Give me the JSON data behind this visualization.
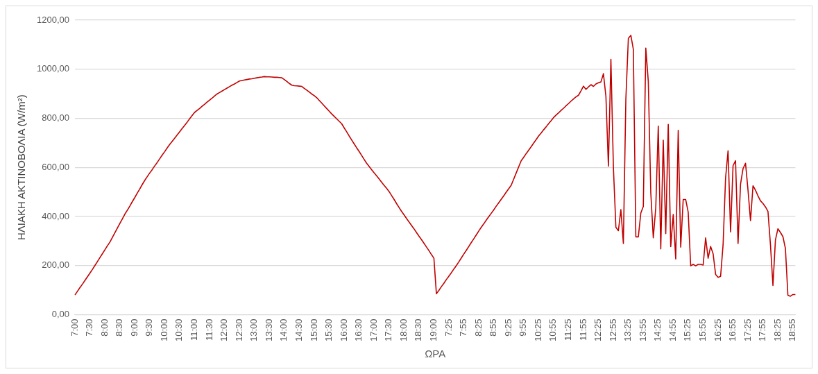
{
  "chart_data": {
    "type": "line",
    "xlabel": "ΩΡΑ",
    "ylabel": "ΗΛΙΑΚΗ ΑΚΤΙΝΟΒΟΛΙΑ (W/m²)",
    "color": "#c00000",
    "grid": "y",
    "ylim": [
      0,
      1200
    ],
    "yticks": [
      {
        "value": 0,
        "label": "0,00"
      },
      {
        "value": 200,
        "label": "200,00"
      },
      {
        "value": 400,
        "label": "400,00"
      },
      {
        "value": 600,
        "label": "600,00"
      },
      {
        "value": 800,
        "label": "800,00"
      },
      {
        "value": 1000,
        "label": "1000,00"
      },
      {
        "value": 1200,
        "label": "1200,00"
      }
    ],
    "categories": [
      "7:00",
      null,
      null,
      null,
      null,
      null,
      "7:30",
      null,
      null,
      null,
      null,
      null,
      "8:00",
      null,
      null,
      null,
      null,
      null,
      "8:30",
      null,
      null,
      null,
      null,
      null,
      "9:00",
      null,
      null,
      null,
      null,
      null,
      "9:30",
      null,
      null,
      null,
      null,
      null,
      "10:00",
      null,
      null,
      null,
      null,
      null,
      "10:30",
      null,
      null,
      null,
      null,
      null,
      "11:00",
      null,
      null,
      null,
      null,
      null,
      "11:30",
      null,
      null,
      null,
      null,
      null,
      "12:00",
      null,
      null,
      null,
      null,
      null,
      "12:30",
      null,
      null,
      null,
      null,
      null,
      "13:00",
      null,
      null,
      null,
      null,
      null,
      "13:30",
      null,
      null,
      null,
      null,
      null,
      "14:00",
      null,
      null,
      null,
      null,
      null,
      "14:30",
      null,
      null,
      null,
      null,
      null,
      "15:00",
      null,
      null,
      null,
      null,
      null,
      "15:30",
      null,
      null,
      null,
      null,
      null,
      "16:00",
      null,
      null,
      null,
      null,
      null,
      "16:30",
      null,
      null,
      null,
      null,
      null,
      "17:00",
      null,
      null,
      null,
      null,
      null,
      "17:30",
      null,
      null,
      null,
      null,
      null,
      "18:00",
      null,
      null,
      null,
      null,
      null,
      "18:30",
      null,
      null,
      null,
      null,
      null,
      "19:00",
      null,
      null,
      null,
      null,
      null,
      "7:25",
      null,
      null,
      null,
      null,
      null,
      "7:55",
      null,
      null,
      null,
      null,
      null,
      "8:25",
      null,
      null,
      null,
      null,
      null,
      "8:55",
      null,
      null,
      null,
      null,
      null,
      "9:25",
      null,
      null,
      null,
      null,
      null,
      "9:55",
      null,
      null,
      null,
      null,
      null,
      "10:25",
      null,
      null,
      null,
      null,
      null,
      "10:55",
      null,
      null,
      null,
      null,
      null,
      "11:25",
      null,
      null,
      null,
      null,
      null,
      "11:55",
      null,
      null,
      null,
      null,
      null,
      "12:25",
      null,
      null,
      null,
      null,
      null,
      "12:55",
      null,
      null,
      null,
      null,
      null,
      "13:25",
      null,
      null,
      null,
      null,
      null,
      "13:55",
      null,
      null,
      null,
      null,
      null,
      "14:25",
      null,
      null,
      null,
      null,
      null,
      "14:55",
      null,
      null,
      null,
      null,
      null,
      "15:25",
      null,
      null,
      null,
      null,
      null,
      "15:55",
      null,
      null,
      null,
      null,
      null,
      "16:25",
      null,
      null,
      null,
      null,
      null,
      "16:55",
      null,
      null,
      null,
      null,
      null,
      "17:25",
      null,
      null,
      null,
      null,
      null,
      "17:55",
      null,
      null,
      null,
      null,
      null,
      "18:25",
      null,
      null,
      null,
      null,
      null,
      "18:55",
      null
    ],
    "values": [
      80,
      95,
      110,
      124,
      139,
      154,
      169,
      184,
      200,
      216,
      232,
      248,
      264,
      280,
      295,
      314,
      333,
      352,
      371,
      390,
      409,
      425,
      442,
      460,
      477,
      495,
      512,
      530,
      547,
      562,
      577,
      591,
      606,
      620,
      635,
      650,
      664,
      679,
      693,
      706,
      719,
      732,
      745,
      758,
      771,
      784,
      798,
      811,
      824,
      832,
      840,
      849,
      857,
      866,
      874,
      882,
      891,
      899,
      905,
      911,
      917,
      923,
      929,
      935,
      940,
      946,
      952,
      954,
      956,
      958,
      960,
      961,
      963,
      965,
      967,
      968,
      970,
      969,
      969,
      968,
      967,
      967,
      966,
      965,
      958,
      950,
      942,
      935,
      933,
      932,
      931,
      930,
      922,
      915,
      907,
      899,
      892,
      884,
      873,
      862,
      851,
      840,
      829,
      818,
      808,
      798,
      788,
      778,
      761,
      745,
      728,
      712,
      696,
      680,
      665,
      649,
      633,
      617,
      604,
      591,
      578,
      566,
      553,
      540,
      527,
      515,
      502,
      486,
      470,
      453,
      437,
      421,
      407,
      392,
      378,
      364,
      350,
      335,
      320,
      306,
      291,
      276,
      261,
      245,
      230,
      85,
      99,
      114,
      128,
      143,
      157,
      171,
      186,
      200,
      215,
      231,
      247,
      262,
      278,
      294,
      309,
      325,
      341,
      356,
      370,
      385,
      399,
      413,
      427,
      442,
      456,
      470,
      484,
      499,
      513,
      527,
      552,
      577,
      602,
      627,
      641,
      656,
      670,
      684,
      699,
      713,
      728,
      740,
      753,
      765,
      778,
      790,
      803,
      813,
      822,
      832,
      841,
      851,
      860,
      870,
      879,
      887,
      894,
      912,
      931,
      918,
      928,
      937,
      930,
      940,
      945,
      948,
      982,
      889,
      605,
      1040,
      600,
      356,
      342,
      428,
      290,
      879,
      1126,
      1138,
      1081,
      317,
      317,
      414,
      441,
      1086,
      950,
      496,
      313,
      436,
      768,
      268,
      711,
      330,
      775,
      277,
      408,
      227,
      751,
      275,
      469,
      469,
      418,
      199,
      205,
      199,
      205,
      205,
      202,
      313,
      230,
      278,
      248,
      164,
      152,
      156,
      285,
      557,
      668,
      337,
      607,
      627,
      290,
      532,
      595,
      617,
      507,
      383,
      525,
      507,
      484,
      464,
      453,
      439,
      421,
      285,
      119,
      305,
      350,
      335,
      318,
      270,
      79,
      75,
      82,
      82
    ]
  }
}
